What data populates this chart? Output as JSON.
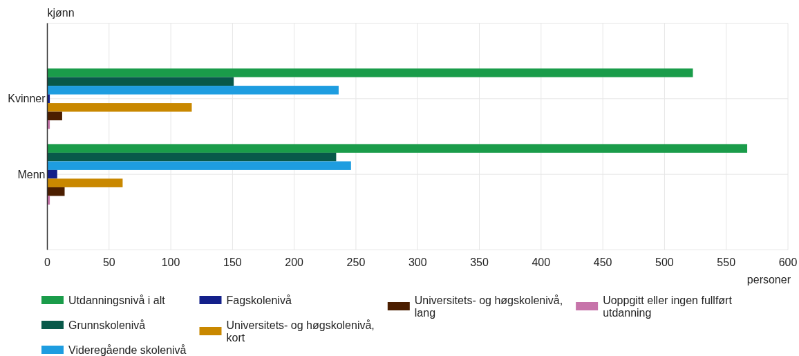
{
  "chart_data": {
    "type": "bar",
    "orientation": "horizontal",
    "ylabel": "kjønn",
    "xlabel": "personer",
    "categories": [
      "Kvinner",
      "Menn"
    ],
    "series": [
      {
        "name": "Utdanningsnivå i alt",
        "color": "#1a9c4a",
        "values": [
          523,
          567
        ]
      },
      {
        "name": "Grunnskolenivå",
        "color": "#08594a",
        "values": [
          151,
          234
        ]
      },
      {
        "name": "Videregående skolenivå",
        "color": "#1e9de0",
        "values": [
          236,
          246
        ]
      },
      {
        "name": "Fagskolenivå",
        "color": "#13208a",
        "values": [
          2,
          8
        ]
      },
      {
        "name": "Universitets- og høgskolenivå, kort",
        "color": "#c98800",
        "values": [
          117,
          61
        ]
      },
      {
        "name": "Universitets- og høgskolenivå, lang",
        "color": "#4b1e00",
        "values": [
          12,
          14
        ]
      },
      {
        "name": "Uoppgitt eller ingen fullført utdanning",
        "color": "#c774aa",
        "values": [
          2,
          2
        ]
      }
    ],
    "xlim": [
      0,
      600
    ],
    "xticks": [
      0,
      50,
      100,
      150,
      200,
      250,
      300,
      350,
      400,
      450,
      500,
      550,
      600
    ],
    "grid": true,
    "legend": "bottom"
  }
}
